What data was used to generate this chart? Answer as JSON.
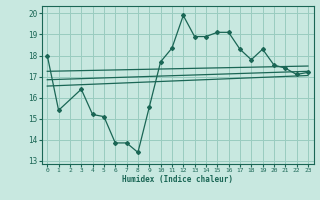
{
  "bg_color": "#c8e8e0",
  "grid_color": "#99ccc0",
  "line_color": "#1a6655",
  "xlim": [
    -0.5,
    23.5
  ],
  "ylim": [
    12.85,
    20.35
  ],
  "yticks": [
    13,
    14,
    15,
    16,
    17,
    18,
    19,
    20
  ],
  "xticks": [
    0,
    1,
    2,
    3,
    4,
    5,
    6,
    7,
    8,
    9,
    10,
    11,
    12,
    13,
    14,
    15,
    16,
    17,
    18,
    19,
    20,
    21,
    22,
    23
  ],
  "xlabel": "Humidex (Indice chaleur)",
  "zigzag_x": [
    0,
    1,
    3,
    4,
    5,
    6,
    7,
    8,
    9,
    10,
    11,
    12,
    13,
    14,
    15,
    16,
    17,
    18,
    19,
    20,
    21,
    22,
    23
  ],
  "zigzag_y": [
    18.0,
    15.4,
    16.4,
    15.2,
    15.1,
    13.85,
    13.85,
    13.4,
    15.55,
    17.7,
    18.35,
    19.9,
    18.9,
    18.9,
    19.1,
    19.1,
    18.3,
    17.8,
    18.3,
    17.55,
    17.4,
    17.1,
    17.2
  ],
  "trend1_x": [
    0,
    23
  ],
  "trend1_y": [
    16.55,
    17.05
  ],
  "trend2_x": [
    0,
    23
  ],
  "trend2_y": [
    16.85,
    17.25
  ],
  "trend3_x": [
    0,
    23
  ],
  "trend3_y": [
    17.25,
    17.5
  ]
}
